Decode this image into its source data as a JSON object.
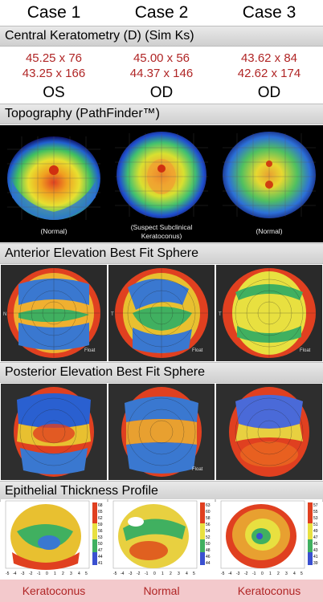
{
  "cases": [
    "Case 1",
    "Case 2",
    "Case 3"
  ],
  "sections": {
    "central_keratometry": "Central Keratometry (D) (Sim Ks)",
    "topography": "Topography (PathFinder™)",
    "anterior_elevation": "Anterior Elevation Best Fit Sphere",
    "posterior_elevation": "Posterior Elevation Best Fit Sphere",
    "epithelial_thickness": "Epithelial Thickness Profile"
  },
  "keratometry": [
    {
      "k1": "45.25 x 76",
      "k2": "43.25 x  166"
    },
    {
      "k1": "45.00 x 56",
      "k2": "44.37 x 146"
    },
    {
      "k1": "43.62 x 84",
      "k2": "42.62 x 174"
    }
  ],
  "eyes": [
    "OS",
    "OD",
    "OD"
  ],
  "topography_captions": [
    "(Normal)",
    "(Suspect Subclinical\nKeratoconus)",
    "(Normal)"
  ],
  "elevation_labels": {
    "nasal": "N",
    "temporal": "T",
    "float": "Float",
    "eye": [
      "OS",
      "OD",
      "OD"
    ]
  },
  "epithelial_scales": [
    [
      "68",
      "65",
      "62",
      "59",
      "56",
      "53",
      "50",
      "47",
      "44",
      "41"
    ],
    [
      "63",
      "60",
      "58",
      "56",
      "54",
      "52",
      "50",
      "48",
      "46",
      "44"
    ],
    [
      "57",
      "55",
      "53",
      "51",
      "49",
      "47",
      "45",
      "43",
      "41",
      "39"
    ]
  ],
  "epithelial_axis_ticks": [
    "-5",
    "-4",
    "-3",
    "-2",
    "-1",
    "0",
    "1",
    "2",
    "3",
    "4",
    "5"
  ],
  "diagnoses": [
    "Keratoconus",
    "Normal",
    "Keratoconus"
  ],
  "colors": {
    "accent": "#b02525",
    "diagnosis_band": "#f3c9cc",
    "section_header": "#d8d8d8"
  }
}
